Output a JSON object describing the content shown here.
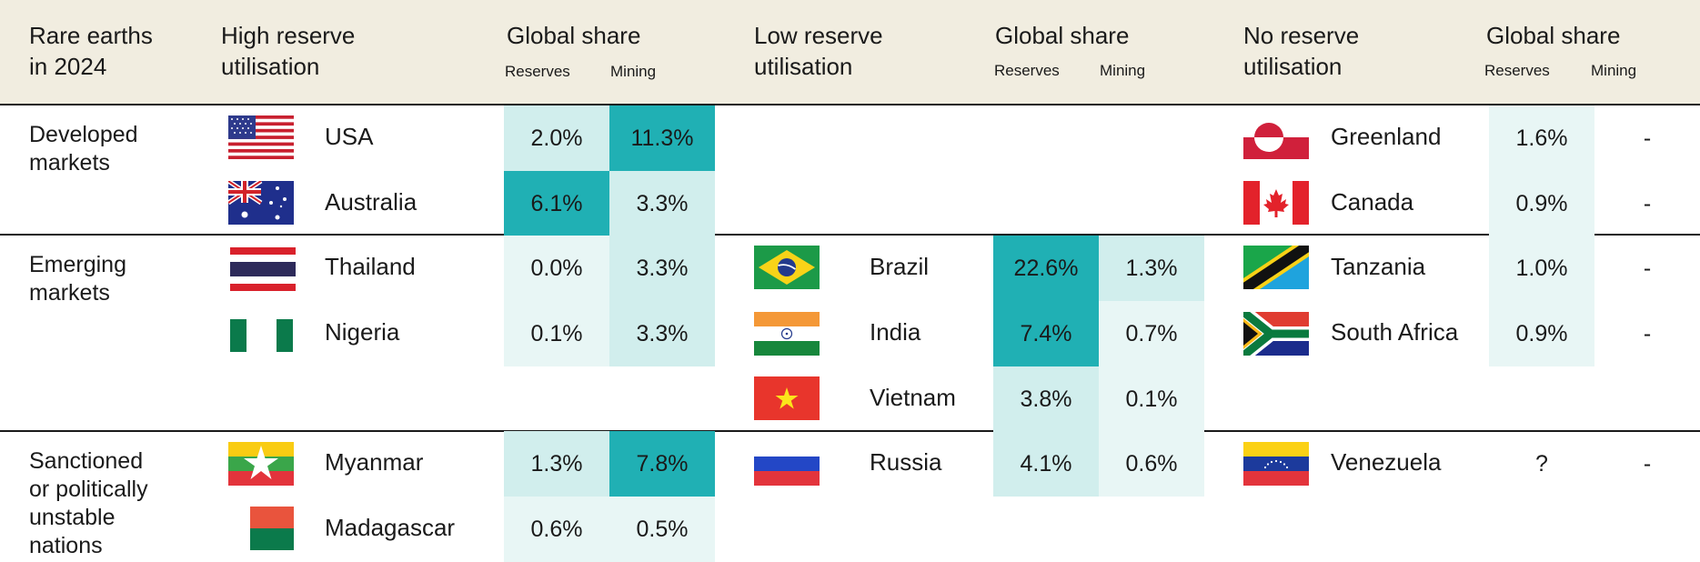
{
  "header": {
    "col_rare_earths": [
      "Rare earths",
      "in 2024"
    ],
    "col_high": [
      "High reserve",
      "utilisation"
    ],
    "col_low": [
      "Low reserve",
      "utilisation"
    ],
    "col_none": [
      "No reserve",
      "utilisation"
    ],
    "global_share": "Global share",
    "reserves": "Reserves",
    "mining": "Mining"
  },
  "groups": {
    "developed": [
      "Developed",
      "markets"
    ],
    "emerging": [
      "Emerging",
      "markets"
    ],
    "sanctioned": [
      "Sanctioned",
      "or politically",
      "unstable",
      "nations"
    ]
  },
  "high": {
    "usa": {
      "name": "USA",
      "reserves": "2.0%",
      "mining": "11.3%"
    },
    "australia": {
      "name": "Australia",
      "reserves": "6.1%",
      "mining": "3.3%"
    },
    "thailand": {
      "name": "Thailand",
      "reserves": "0.0%",
      "mining": "3.3%"
    },
    "nigeria": {
      "name": "Nigeria",
      "reserves": "0.1%",
      "mining": "3.3%"
    },
    "myanmar": {
      "name": "Myanmar",
      "reserves": "1.3%",
      "mining": "7.8%"
    },
    "madagascar": {
      "name": "Madagascar",
      "reserves": "0.6%",
      "mining": "0.5%"
    }
  },
  "low": {
    "brazil": {
      "name": "Brazil",
      "reserves": "22.6%",
      "mining": "1.3%"
    },
    "india": {
      "name": "India",
      "reserves": "7.4%",
      "mining": "0.7%"
    },
    "vietnam": {
      "name": "Vietnam",
      "reserves": "3.8%",
      "mining": "0.1%"
    },
    "russia": {
      "name": "Russia",
      "reserves": "4.1%",
      "mining": "0.6%"
    }
  },
  "none": {
    "greenland": {
      "name": "Greenland",
      "reserves": "1.6%",
      "mining": "-"
    },
    "canada": {
      "name": "Canada",
      "reserves": "0.9%",
      "mining": "-"
    },
    "tanzania": {
      "name": "Tanzania",
      "reserves": "1.0%",
      "mining": "-"
    },
    "south_africa": {
      "name": "South Africa",
      "reserves": "0.9%",
      "mining": "-"
    },
    "venezuela": {
      "name": "Venezuela",
      "reserves": "?",
      "mining": "-"
    }
  },
  "colors": {
    "header_bg": "#f1ede0",
    "shade_light": "#e8f6f5",
    "shade_mid": "#d1eeed",
    "shade_dark": "#20b0b4"
  }
}
